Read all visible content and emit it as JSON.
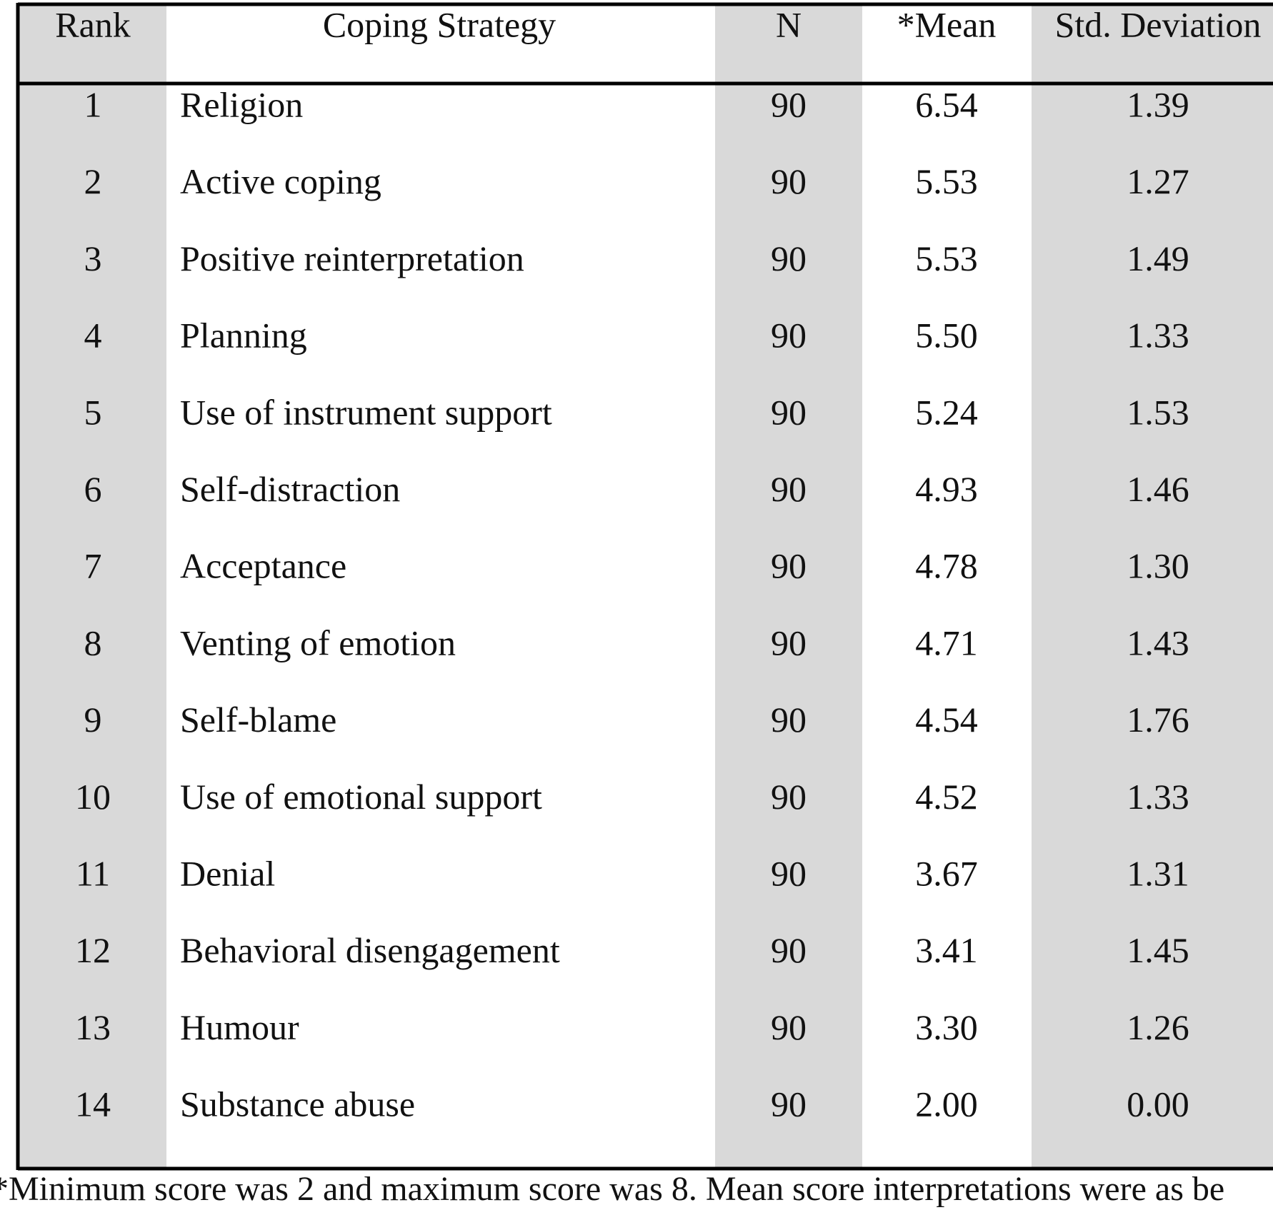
{
  "table": {
    "header": [
      "Rank",
      "Coping Strategy",
      "N",
      "*Mean",
      "Std. Deviation"
    ],
    "rows": [
      [
        "1",
        "Religion",
        "90",
        "6.54",
        "1.39"
      ],
      [
        "2",
        "Active coping",
        "90",
        "5.53",
        "1.27"
      ],
      [
        "3",
        "Positive reinterpretation",
        "90",
        "5.53",
        "1.49"
      ],
      [
        "4",
        "Planning",
        "90",
        "5.50",
        "1.33"
      ],
      [
        "5",
        "Use of instrument support",
        "90",
        "5.24",
        "1.53"
      ],
      [
        "6",
        "Self-distraction",
        "90",
        "4.93",
        "1.46"
      ],
      [
        "7",
        "Acceptance",
        "90",
        "4.78",
        "1.30"
      ],
      [
        "8",
        "Venting of emotion",
        "90",
        "4.71",
        "1.43"
      ],
      [
        "9",
        "Self-blame",
        "90",
        "4.54",
        "1.76"
      ],
      [
        "10",
        "Use of emotional support",
        "90",
        "4.52",
        "1.33"
      ],
      [
        "11",
        "Denial",
        "90",
        "3.67",
        "1.31"
      ],
      [
        "12",
        "Behavioral disengagement",
        "90",
        "3.41",
        "1.45"
      ],
      [
        "13",
        "Humour",
        "90",
        "3.30",
        "1.26"
      ],
      [
        "14",
        "Substance abuse",
        "90",
        "2.00",
        "0.00"
      ]
    ],
    "footnote": "*Minimum score was 2 and maximum score was 8. Mean score interpretations were as be"
  }
}
